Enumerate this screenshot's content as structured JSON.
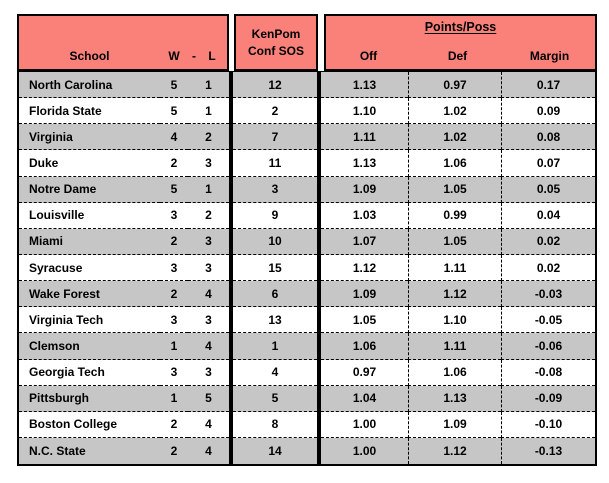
{
  "header": {
    "school": "School",
    "w": "W",
    "dash": "-",
    "l": "L",
    "kenpom_line1": "KenPom",
    "kenpom_line2": "Conf SOS",
    "points_title": "Points/Poss",
    "off": "Off",
    "def": "Def",
    "margin": "Margin"
  },
  "colors": {
    "header_bg": "#FA807A",
    "row_alt_bg": "#C6C6C6",
    "row_bg": "#FFFFFF",
    "border": "#000000"
  },
  "chart_data": {
    "type": "table",
    "columns": [
      "School",
      "W",
      "L",
      "KenPom Conf SOS",
      "Points/Poss Off",
      "Points/Poss Def",
      "Points/Poss Margin"
    ],
    "rows": [
      {
        "school": "North Carolina",
        "w": "5",
        "l": "1",
        "conf_sos": "12",
        "off": "1.13",
        "def": "0.97",
        "margin": "0.17"
      },
      {
        "school": "Florida State",
        "w": "5",
        "l": "1",
        "conf_sos": "2",
        "off": "1.10",
        "def": "1.02",
        "margin": "0.09"
      },
      {
        "school": "Virginia",
        "w": "4",
        "l": "2",
        "conf_sos": "7",
        "off": "1.11",
        "def": "1.02",
        "margin": "0.08"
      },
      {
        "school": "Duke",
        "w": "2",
        "l": "3",
        "conf_sos": "11",
        "off": "1.13",
        "def": "1.06",
        "margin": "0.07"
      },
      {
        "school": "Notre Dame",
        "w": "5",
        "l": "1",
        "conf_sos": "3",
        "off": "1.09",
        "def": "1.05",
        "margin": "0.05"
      },
      {
        "school": "Louisville",
        "w": "3",
        "l": "2",
        "conf_sos": "9",
        "off": "1.03",
        "def": "0.99",
        "margin": "0.04"
      },
      {
        "school": "Miami",
        "w": "2",
        "l": "3",
        "conf_sos": "10",
        "off": "1.07",
        "def": "1.05",
        "margin": "0.02"
      },
      {
        "school": "Syracuse",
        "w": "3",
        "l": "3",
        "conf_sos": "15",
        "off": "1.12",
        "def": "1.11",
        "margin": "0.02"
      },
      {
        "school": "Wake Forest",
        "w": "2",
        "l": "4",
        "conf_sos": "6",
        "off": "1.09",
        "def": "1.12",
        "margin": "-0.03"
      },
      {
        "school": "Virginia Tech",
        "w": "3",
        "l": "3",
        "conf_sos": "13",
        "off": "1.05",
        "def": "1.10",
        "margin": "-0.05"
      },
      {
        "school": "Clemson",
        "w": "1",
        "l": "4",
        "conf_sos": "1",
        "off": "1.06",
        "def": "1.11",
        "margin": "-0.06"
      },
      {
        "school": "Georgia Tech",
        "w": "3",
        "l": "3",
        "conf_sos": "4",
        "off": "0.97",
        "def": "1.06",
        "margin": "-0.08"
      },
      {
        "school": "Pittsburgh",
        "w": "1",
        "l": "5",
        "conf_sos": "5",
        "off": "1.04",
        "def": "1.13",
        "margin": "-0.09"
      },
      {
        "school": "Boston College",
        "w": "2",
        "l": "4",
        "conf_sos": "8",
        "off": "1.00",
        "def": "1.09",
        "margin": "-0.10"
      },
      {
        "school": "N.C. State",
        "w": "2",
        "l": "4",
        "conf_sos": "14",
        "off": "1.00",
        "def": "1.12",
        "margin": "-0.13"
      }
    ]
  }
}
